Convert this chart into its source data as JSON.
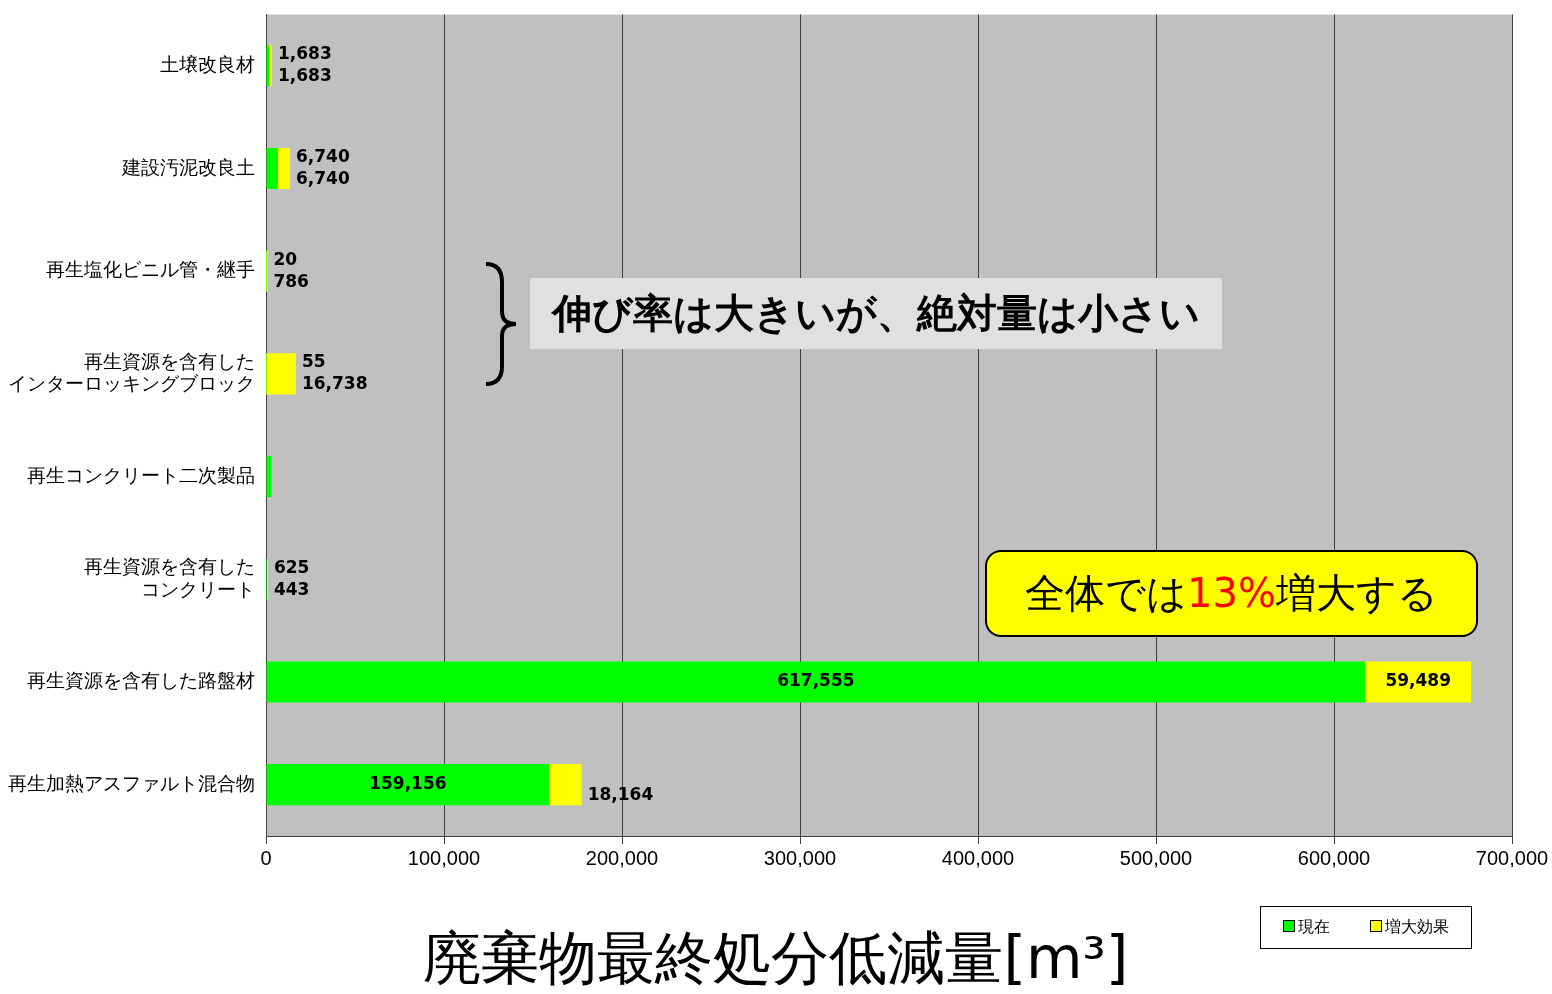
{
  "chart_data": {
    "type": "bar",
    "orientation": "horizontal",
    "stacked": true,
    "xlabel": "廃棄物最終処分低減量[m³]",
    "categories": [
      "土壌改良材",
      "建設汚泥改良土",
      "再生塩化ビニル管・継手",
      "再生資源を含有したインターロッキングブロック",
      "再生コンクリート二次製品",
      "再生資源を含有したコンクリート",
      "再生資源を含有した路盤材",
      "再生加熱アスファルト混合物"
    ],
    "series": [
      {
        "name": "現在",
        "color": "#00ff00",
        "values": [
          1683,
          6740,
          20,
          55,
          3000,
          625,
          617555,
          159156
        ],
        "value_labels": [
          "1,683",
          "6,740",
          "20",
          "55",
          null,
          "625",
          "617,555",
          "159,156"
        ]
      },
      {
        "name": "増大効果",
        "color": "#ffff00",
        "values": [
          1683,
          6740,
          786,
          16738,
          null,
          443,
          59489,
          18164
        ],
        "value_labels": [
          "1,683",
          "6,740",
          "786",
          "16,738",
          null,
          "443",
          "59,489",
          "18,164"
        ]
      }
    ],
    "xlim": [
      0,
      700000
    ],
    "xticks": [
      {
        "value": 0,
        "label": "0"
      },
      {
        "value": 100000,
        "label": "100,000"
      },
      {
        "value": 200000,
        "label": "200,000"
      },
      {
        "value": 300000,
        "label": "300,000"
      },
      {
        "value": 400000,
        "label": "400,000"
      },
      {
        "value": 500000,
        "label": "500,000"
      },
      {
        "value": 600000,
        "label": "600,000"
      },
      {
        "value": 700000,
        "label": "700,000"
      }
    ],
    "grid": "x",
    "legend": "bottom right",
    "annotations": [
      "伸び率は大きいが、絶対量は小さい",
      "全体では13%増大する"
    ]
  }
}
